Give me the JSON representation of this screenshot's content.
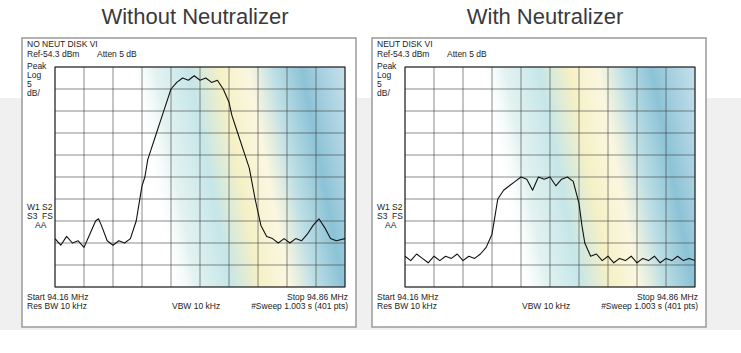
{
  "chart_data": [
    {
      "type": "line",
      "title": "Without Neutralizer",
      "annotations": [
        "NO NEUT DISK VI",
        "Ref-54.3 dBm",
        "Atten 5 dB",
        "Peak",
        "Log",
        "5",
        "dB/",
        "W1 S2",
        "S3  FS",
        "AA",
        "Start 94.16 MHz",
        "Stop 94.86 MHz",
        "Res BW 10 kHz",
        "VBW 10 kHz",
        "#Sweep 1.003 s (401 pts)"
      ],
      "x": [
        94.16,
        94.174,
        94.188,
        94.202,
        94.216,
        94.23,
        94.244,
        94.258,
        94.265,
        94.272,
        94.286,
        94.3,
        94.314,
        94.328,
        94.342,
        94.356,
        94.363,
        94.37,
        94.377,
        94.384,
        94.391,
        94.405,
        94.412,
        94.426,
        94.44,
        94.454,
        94.468,
        94.482,
        94.496,
        94.51,
        94.524,
        94.538,
        94.552,
        94.566,
        94.58,
        94.587,
        94.601,
        94.615,
        94.629,
        94.643,
        94.657,
        94.671,
        94.685,
        94.699,
        94.713,
        94.727,
        94.741,
        94.755,
        94.769,
        94.783,
        94.797,
        94.811,
        94.825,
        94.839,
        94.86
      ],
      "values": [
        -93.3,
        -94.8,
        -92.8,
        -94.3,
        -93.8,
        -95.3,
        -92.3,
        -89.3,
        -88.8,
        -90.3,
        -93.8,
        -94.8,
        -93.8,
        -94.3,
        -93.3,
        -89.3,
        -85.3,
        -81.3,
        -79.3,
        -75.3,
        -73.3,
        -69.3,
        -67.3,
        -63.3,
        -59.3,
        -57.8,
        -56.8,
        -57.3,
        -56.3,
        -57.3,
        -56.8,
        -57.8,
        -57.3,
        -59.3,
        -62.3,
        -65.3,
        -69.3,
        -73.3,
        -77.3,
        -84.3,
        -90.3,
        -92.8,
        -93.3,
        -94.3,
        -93.3,
        -94.3,
        -93.3,
        -93.8,
        -92.3,
        -90.3,
        -88.8,
        -90.8,
        -93.3,
        -93.8,
        -93.3
      ],
      "color": "#111111",
      "xlim": [
        94.16,
        94.86
      ],
      "xticks": [
        94.16,
        94.23,
        94.3,
        94.37,
        94.44,
        94.51,
        94.58,
        94.65,
        94.72,
        94.79,
        94.86
      ],
      "ylim": [
        -104.3,
        -54.3
      ],
      "yticks": [
        -54.3,
        -59.3,
        -64.3,
        -69.3,
        -74.3,
        -79.3,
        -84.3,
        -89.3,
        -94.3,
        -99.3,
        -104.3
      ],
      "grid": true,
      "tick_labels": false
    },
    {
      "type": "line",
      "title": "With Neutralizer",
      "annotations": [
        "NEUT DISK VI",
        "Ref-54.3 dBm",
        "Atten 5 dB",
        "Peak",
        "Log",
        "5",
        "dB/",
        "W1 S2",
        "S3  FS",
        "AA",
        "Start 94.16 MHz",
        "Stop 94.86 MHz",
        "Res BW 10 kHz",
        "VBW 10 kHz",
        "#Sweep 1.003 s (401 pts)"
      ],
      "x": [
        94.16,
        94.174,
        94.188,
        94.202,
        94.216,
        94.23,
        94.244,
        94.258,
        94.272,
        94.286,
        94.3,
        94.314,
        94.328,
        94.342,
        94.356,
        94.37,
        94.377,
        94.384,
        94.398,
        94.412,
        94.426,
        94.44,
        94.454,
        94.468,
        94.482,
        94.496,
        94.51,
        94.524,
        94.538,
        94.552,
        94.566,
        94.58,
        94.587,
        94.594,
        94.608,
        94.622,
        94.636,
        94.65,
        94.664,
        94.678,
        94.692,
        94.706,
        94.72,
        94.734,
        94.748,
        94.762,
        94.776,
        94.79,
        94.804,
        94.818,
        94.832,
        94.846,
        94.86
      ],
      "values": [
        -97.3,
        -98.3,
        -96.8,
        -97.8,
        -98.8,
        -97.3,
        -98.3,
        -97.3,
        -97.8,
        -96.8,
        -98.3,
        -97.3,
        -97.8,
        -96.8,
        -95.3,
        -92.3,
        -88.3,
        -84.3,
        -82.3,
        -81.3,
        -80.3,
        -79.3,
        -79.8,
        -82.3,
        -79.3,
        -79.8,
        -79.3,
        -81.3,
        -79.8,
        -79.3,
        -80.3,
        -85.3,
        -90.3,
        -94.3,
        -97.3,
        -96.8,
        -98.3,
        -97.3,
        -98.8,
        -97.8,
        -98.3,
        -97.3,
        -98.8,
        -97.8,
        -98.3,
        -97.3,
        -98.8,
        -97.8,
        -98.3,
        -97.3,
        -98.3,
        -97.8,
        -98.3
      ],
      "color": "#111111",
      "xlim": [
        94.16,
        94.86
      ],
      "xticks": [
        94.16,
        94.23,
        94.3,
        94.37,
        94.44,
        94.51,
        94.58,
        94.65,
        94.72,
        94.79,
        94.86
      ],
      "ylim": [
        -104.3,
        -54.3
      ],
      "yticks": [
        -54.3,
        -59.3,
        -64.3,
        -69.3,
        -74.3,
        -79.3,
        -84.3,
        -89.3,
        -94.3,
        -99.3,
        -104.3
      ],
      "grid": true,
      "tick_labels": false
    }
  ]
}
